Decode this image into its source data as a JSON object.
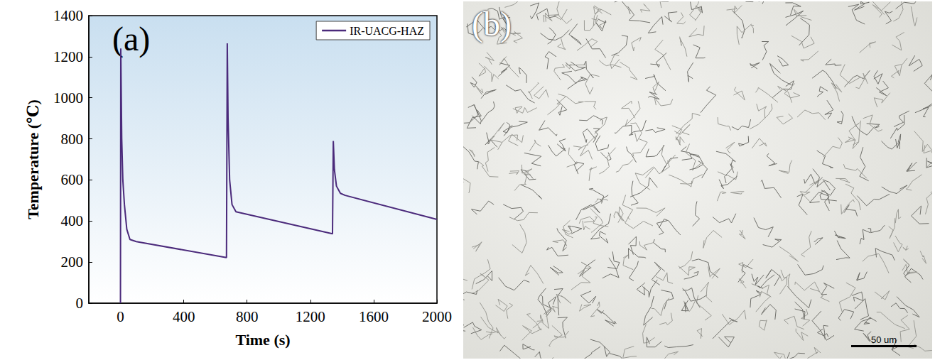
{
  "chart_data": {
    "type": "line",
    "panel_label": "(a)",
    "x_label": "Time (s)",
    "y_label": "Temperature (℃)",
    "xlim": [
      -200,
      2000
    ],
    "xticks": [
      0,
      400,
      800,
      1200,
      1600,
      2000
    ],
    "ylim": [
      0,
      1400
    ],
    "yticks": [
      0,
      200,
      400,
      600,
      800,
      1000,
      1200,
      1400
    ],
    "grid": false,
    "legend": "upper right",
    "series": [
      {
        "name": "IR-UACG-HAZ",
        "color": "#4b2a7b",
        "line_style": "solid",
        "x": [
          0,
          2,
          8,
          15,
          25,
          40,
          60,
          100,
          670,
          675,
          680,
          690,
          705,
          730,
          1340,
          1345,
          1352,
          1365,
          1390,
          1420,
          2000
        ],
        "values": [
          0,
          1240,
          800,
          600,
          480,
          360,
          310,
          300,
          222,
          1265,
          900,
          600,
          480,
          445,
          338,
          790,
          650,
          570,
          535,
          525,
          408
        ]
      }
    ]
  },
  "micrograph": {
    "panel_label": "(b)",
    "scale_bar": "50 um"
  }
}
